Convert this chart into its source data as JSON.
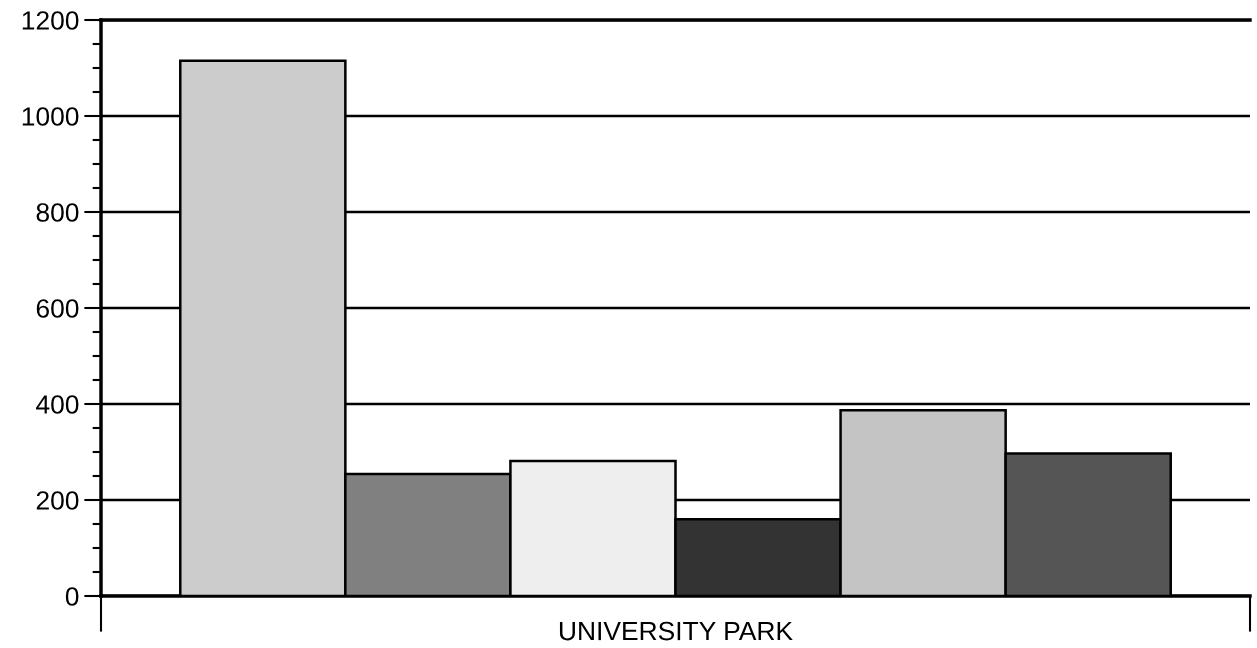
{
  "chart_data": {
    "type": "bar",
    "categories": [
      "UNIVERSITY PARK"
    ],
    "series": [
      {
        "color": "#cccccc",
        "values": [
          1115
        ]
      },
      {
        "color": "#808080",
        "values": [
          254
        ]
      },
      {
        "color": "#eeeeee",
        "values": [
          281
        ]
      },
      {
        "color": "#333333",
        "values": [
          160
        ]
      },
      {
        "color": "#c4c4c4",
        "values": [
          387
        ]
      },
      {
        "color": "#555555",
        "values": [
          297
        ]
      }
    ],
    "ylim": [
      0,
      1200
    ],
    "yticks": [
      0,
      200,
      400,
      600,
      800,
      1000,
      1200
    ],
    "grid": "y",
    "legend": false
  }
}
